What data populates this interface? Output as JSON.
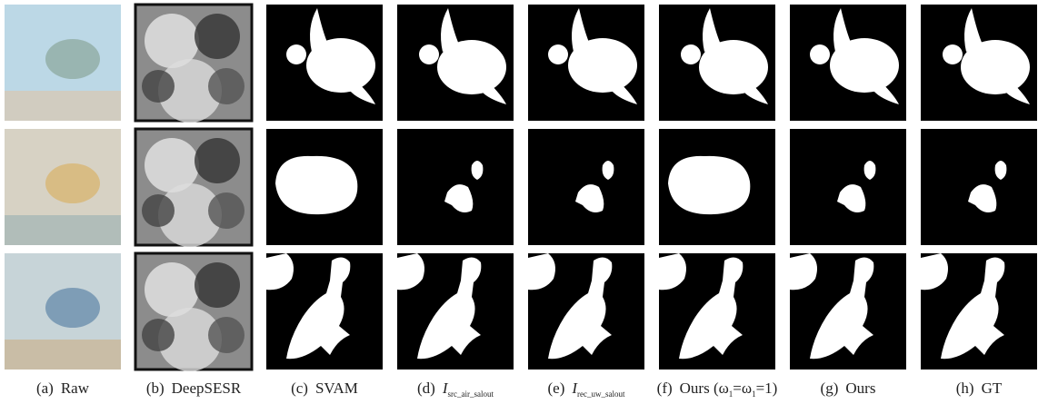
{
  "captions": [
    {
      "letter": "(a)",
      "segments": [
        "Raw"
      ]
    },
    {
      "letter": "(b)",
      "segments": [
        "DeepSESR"
      ]
    },
    {
      "letter": "(c)",
      "segments": [
        "SVAM"
      ]
    },
    {
      "letter": "(d)",
      "segments": [
        "I",
        "src_air_salout"
      ]
    },
    {
      "letter": "(e)",
      "segments": [
        "I",
        "rec_uw_salout"
      ]
    },
    {
      "letter": "(f)",
      "segments": [
        "Ours (ω",
        "1",
        "=ω",
        "1",
        "=1)"
      ]
    },
    {
      "letter": "(g)",
      "segments": [
        "Ours"
      ]
    },
    {
      "letter": "(h)",
      "segments": [
        "GT"
      ]
    }
  ]
}
